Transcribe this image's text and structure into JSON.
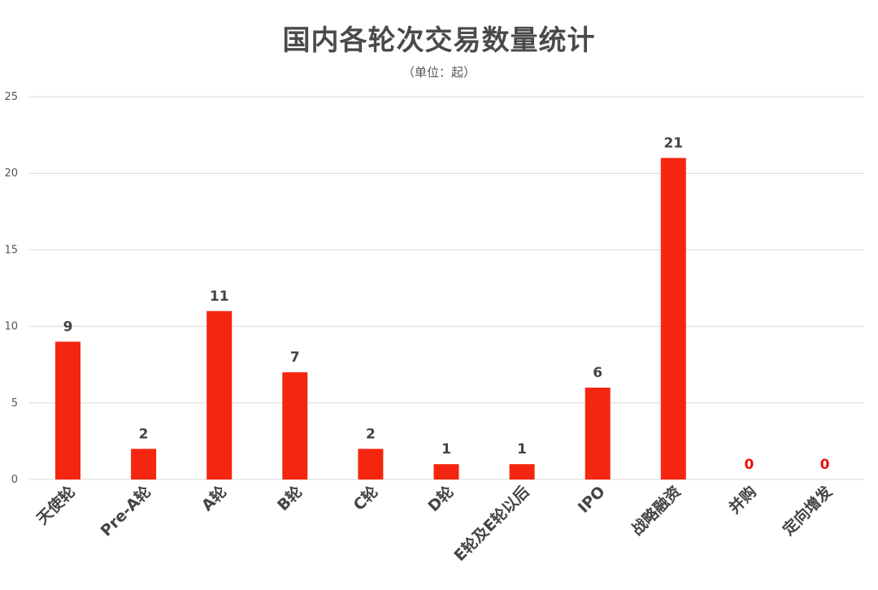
{
  "chart_data": {
    "type": "bar",
    "title": "国内各轮次交易数量统计",
    "subtitle": "（单位：起）",
    "categories": [
      "天使轮",
      "Pre-A轮",
      "A轮",
      "B轮",
      "C轮",
      "D轮",
      "E轮及E轮以后",
      "IPO",
      "战略融资",
      "并购",
      "定向增发"
    ],
    "values": [
      9,
      2,
      11,
      7,
      2,
      1,
      1,
      6,
      21,
      0,
      0
    ],
    "ylim": [
      0,
      25
    ],
    "yticks": [
      0,
      5,
      10,
      15,
      20,
      25
    ],
    "grid": true,
    "bar_color": "#f5260f",
    "label_color": "#444444",
    "zero_label_color": "#e8120c",
    "gridline_color": "#d9d9d9"
  }
}
